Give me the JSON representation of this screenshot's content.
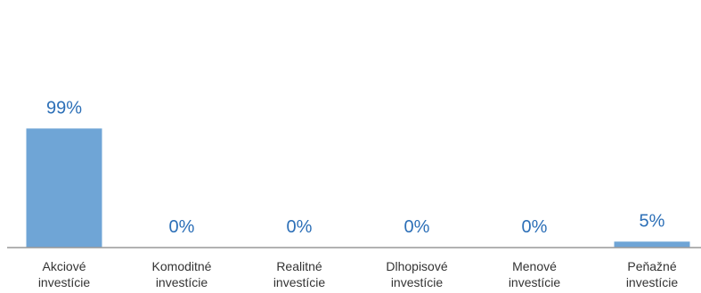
{
  "chart_data": {
    "type": "bar",
    "categories": [
      [
        "Akciové",
        "investície"
      ],
      [
        "Komoditné",
        "investície"
      ],
      [
        "Realitné",
        "investície"
      ],
      [
        "Dlhopisové",
        "investície"
      ],
      [
        "Menové",
        "investície"
      ],
      [
        "Peňažné",
        "investície"
      ]
    ],
    "values": [
      99,
      0,
      0,
      0,
      0,
      5
    ],
    "value_labels": [
      "99%",
      "0%",
      "0%",
      "0%",
      "0%",
      "5%"
    ],
    "unit": "%",
    "ylim": [
      0,
      100
    ],
    "grid": false,
    "legend": "none",
    "colors": {
      "bar": "#6fa5d6",
      "value_label": "#2c6fb7",
      "axis": "#999999",
      "category_label": "#333333"
    }
  }
}
